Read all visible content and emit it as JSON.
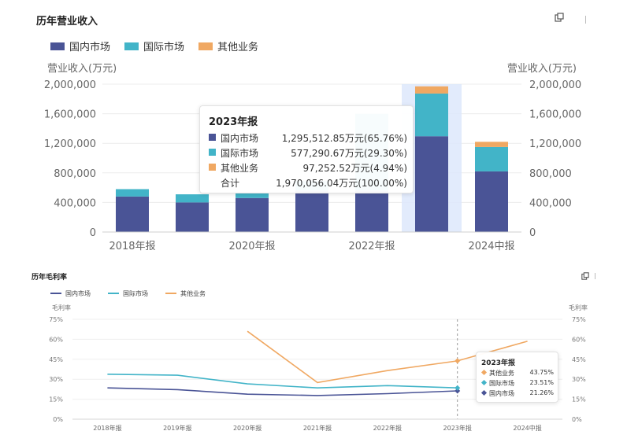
{
  "charts": {
    "revenue": {
      "title": "历年营业收入",
      "legend": [
        {
          "name": "国内市场",
          "color": "#4a5496"
        },
        {
          "name": "国际市场",
          "color": "#42b4c8"
        },
        {
          "name": "其他业务",
          "color": "#f0a862"
        }
      ],
      "yname_left": "营业收入(万元)",
      "yname_right": "营业收入(万元)",
      "y_ticks": [
        "0",
        "400,000",
        "800,000",
        "1,200,000",
        "1,600,000",
        "2,000,000"
      ],
      "x_ticks": [
        "2018年报",
        "2020年报",
        "2022年报",
        "2024中报"
      ],
      "tooltip": {
        "title": "2023年报",
        "rows": [
          {
            "name": "国内市场",
            "value": "1,295,512.85万元(65.76%)",
            "color": "#4a5496"
          },
          {
            "name": "国际市场",
            "value": "577,290.67万元(29.30%)",
            "color": "#42b4c8"
          },
          {
            "name": "其他业务",
            "value": "97,252.52万元(4.94%)",
            "color": "#f0a862"
          },
          {
            "name": "合计",
            "value": "1,970,056.04万元(100.00%)",
            "color": ""
          }
        ]
      }
    },
    "margin": {
      "title": "历年毛利率",
      "legend": [
        {
          "name": "国内市场",
          "color": "#4a5496"
        },
        {
          "name": "国际市场",
          "color": "#42b4c8"
        },
        {
          "name": "其他业务",
          "color": "#f0a862"
        }
      ],
      "yname_left": "毛利率",
      "yname_right": "毛利率",
      "y_ticks": [
        "0%",
        "15%",
        "30%",
        "45%",
        "60%",
        "75%"
      ],
      "x_ticks": [
        "2018年报",
        "2019年报",
        "2020年报",
        "2021年报",
        "2022年报",
        "2023年报",
        "2024中报"
      ],
      "tooltip": {
        "title": "2023年报",
        "rows": [
          {
            "name": "其他业务",
            "value": "43.75%",
            "color": "#f0a862"
          },
          {
            "name": "国际市场",
            "value": "23.51%",
            "color": "#42b4c8"
          },
          {
            "name": "国内市场",
            "value": "21.26%",
            "color": "#4a5496"
          }
        ]
      }
    }
  },
  "chart_data": [
    {
      "type": "bar",
      "title": "历年营业收入",
      "stacked": true,
      "categories": [
        "2018年报",
        "2019年报",
        "2020年报",
        "2021年报",
        "2022年报",
        "2023年报",
        "2024中报"
      ],
      "series": [
        {
          "name": "国内市场",
          "color": "#4a5496",
          "values": [
            480000,
            400000,
            460000,
            560000,
            560000,
            1295512.85,
            820000
          ]
        },
        {
          "name": "国际市场",
          "color": "#42b4c8",
          "values": [
            100000,
            110000,
            70000,
            130000,
            1040000,
            577290.67,
            330000
          ]
        },
        {
          "name": "其他业务",
          "color": "#f0a862",
          "values": [
            0,
            0,
            0,
            0,
            0,
            97252.52,
            70000
          ]
        }
      ],
      "ylabel": "营业收入(万元)",
      "ylim": [
        0,
        2000000
      ],
      "highlight_category": "2023年报",
      "legend_position": "top-left",
      "grid": true
    },
    {
      "type": "line",
      "title": "历年毛利率",
      "categories": [
        "2018年报",
        "2019年报",
        "2020年报",
        "2021年报",
        "2022年报",
        "2023年报",
        "2024中报"
      ],
      "series": [
        {
          "name": "国内市场",
          "color": "#4a5496",
          "values": [
            23.5,
            22.2,
            18.8,
            17.8,
            19.2,
            21.26,
            null
          ]
        },
        {
          "name": "国际市场",
          "color": "#42b4c8",
          "values": [
            33.8,
            33.0,
            26.5,
            23.5,
            25.2,
            23.51,
            null
          ]
        },
        {
          "name": "其他业务",
          "color": "#f0a862",
          "values": [
            null,
            null,
            66.0,
            27.5,
            36.5,
            43.75,
            58.5
          ]
        }
      ],
      "ylabel": "毛利率",
      "ylim": [
        0,
        75
      ],
      "y_unit": "%",
      "highlight_category": "2023年报",
      "legend_position": "top-left",
      "grid": true
    }
  ]
}
